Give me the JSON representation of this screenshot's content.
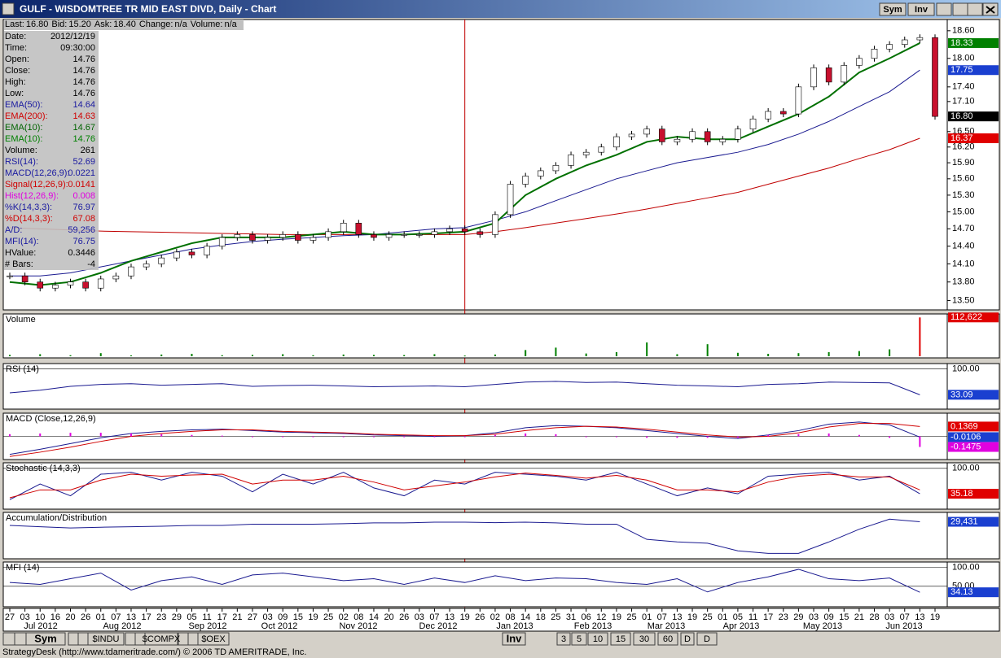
{
  "window": {
    "title": "GULF - WISDOMTREE TR MID EAST DIVD, Daily - Chart",
    "buttons": [
      "Sym",
      "Inv"
    ]
  },
  "quote_line": [
    {
      "label": "Last:",
      "value": "16.80"
    },
    {
      "label": "Bid:",
      "value": "15.20"
    },
    {
      "label": "Ask:",
      "value": "18.40"
    },
    {
      "label": "Change:",
      "value": "n/a"
    },
    {
      "label": "Volume:",
      "value": "n/a"
    }
  ],
  "info_panel": [
    {
      "label": "Date:",
      "value": "2012/12/19",
      "color": "#000000"
    },
    {
      "label": "Time:",
      "value": "09:30:00",
      "color": "#000000"
    },
    {
      "label": "Open:",
      "value": "14.76",
      "color": "#000000"
    },
    {
      "label": "Close:",
      "value": "14.76",
      "color": "#000000"
    },
    {
      "label": "High:",
      "value": "14.76",
      "color": "#000000"
    },
    {
      "label": "Low:",
      "value": "14.76",
      "color": "#000000"
    },
    {
      "label": "EMA(50):",
      "value": "14.64",
      "color": "#1a1aa0"
    },
    {
      "label": "EMA(200):",
      "value": "14.63",
      "color": "#d00000"
    },
    {
      "label": "EMA(10):",
      "value": "14.67",
      "color": "#006400"
    },
    {
      "label": "EMA(10):",
      "value": "14.76",
      "color": "#008000"
    },
    {
      "label": "Volume:",
      "value": "261",
      "color": "#000000"
    },
    {
      "label": "RSI(14):",
      "value": "52.69",
      "color": "#1a1aa0"
    },
    {
      "label": "MACD(12,26,9):",
      "value": "0.0221",
      "color": "#1a1aa0"
    },
    {
      "label": "Signal(12,26,9):",
      "value": "0.0141",
      "color": "#d00000"
    },
    {
      "label": "Hist(12,26,9):",
      "value": "0.008",
      "color": "#e000e0"
    },
    {
      "label": "%K(14,3,3):",
      "value": "76.97",
      "color": "#1a1aa0"
    },
    {
      "label": "%D(14,3,3):",
      "value": "67.08",
      "color": "#d00000"
    },
    {
      "label": "A/D:",
      "value": "59,256",
      "color": "#1a1aa0"
    },
    {
      "label": "MFI(14):",
      "value": "76.75",
      "color": "#1a1aa0"
    },
    {
      "label": "HValue:",
      "value": "0.3446",
      "color": "#000000"
    },
    {
      "label": "# Bars:",
      "value": "-4",
      "color": "#000000"
    }
  ],
  "price_panel": {
    "log_scale": true,
    "ylim": [
      13.35,
      18.85
    ],
    "yticks": [
      {
        "value": 13.5,
        "label": "13.50"
      },
      {
        "value": 13.8,
        "label": "13.80"
      },
      {
        "value": 14.1,
        "label": "14.10"
      },
      {
        "value": 14.4,
        "label": "14.40"
      },
      {
        "value": 14.7,
        "label": "14.70"
      },
      {
        "value": 15,
        "label": "15.00"
      },
      {
        "value": 15.3,
        "label": "15.30"
      },
      {
        "value": 15.6,
        "label": "15.60"
      },
      {
        "value": 15.9,
        "label": "15.90"
      },
      {
        "value": 16.2,
        "label": "16.20"
      },
      {
        "value": 16.5,
        "label": "16.50"
      },
      {
        "value": 17.1,
        "label": "17.10"
      },
      {
        "value": 17.4,
        "label": "17.40"
      },
      {
        "value": 18,
        "label": "18.00"
      },
      {
        "value": 18.6,
        "label": "18.60"
      }
    ],
    "closes": [
      13.9,
      13.8,
      13.7,
      13.75,
      13.8,
      13.7,
      13.85,
      13.9,
      14.05,
      14.1,
      14.2,
      14.3,
      14.25,
      14.4,
      14.55,
      14.6,
      14.5,
      14.55,
      14.6,
      14.5,
      14.55,
      14.65,
      14.8,
      14.6,
      14.55,
      14.6,
      14.6,
      14.6,
      14.65,
      14.7,
      14.65,
      14.6,
      14.95,
      15.5,
      15.65,
      15.75,
      15.85,
      16.05,
      16.1,
      16.2,
      16.4,
      16.45,
      16.55,
      16.3,
      16.35,
      16.5,
      16.3,
      16.35,
      16.55,
      16.75,
      16.9,
      16.85,
      17.4,
      17.8,
      17.5,
      17.85,
      18.0,
      18.2,
      18.3,
      18.4,
      18.45,
      16.8
    ],
    "up_color": "#ffffff",
    "down_color": "#c8102e",
    "lines": [
      {
        "color": "#c00000",
        "values": [
          14.72,
          14.7,
          14.68,
          14.66,
          14.65,
          14.64,
          14.63,
          14.62,
          14.61,
          14.6,
          14.6,
          14.6,
          14.6,
          14.6,
          14.6,
          14.6,
          14.65,
          14.72,
          14.8,
          14.88,
          14.96,
          15.05,
          15.15,
          15.25,
          15.35,
          15.5,
          15.65,
          15.8,
          15.98,
          16.15,
          16.37
        ]
      },
      {
        "color": "#1a1a90",
        "values": [
          13.9,
          13.9,
          13.95,
          14.05,
          14.15,
          14.25,
          14.35,
          14.42,
          14.48,
          14.52,
          14.55,
          14.58,
          14.6,
          14.65,
          14.7,
          14.72,
          14.85,
          15.0,
          15.2,
          15.4,
          15.6,
          15.75,
          15.9,
          16.0,
          16.1,
          16.25,
          16.45,
          16.7,
          17.0,
          17.3,
          17.75
        ]
      },
      {
        "color": "#007000",
        "values": [
          13.8,
          13.75,
          13.8,
          13.95,
          14.15,
          14.3,
          14.45,
          14.55,
          14.55,
          14.55,
          14.6,
          14.65,
          14.6,
          14.6,
          14.62,
          14.65,
          14.8,
          15.3,
          15.6,
          15.85,
          16.05,
          16.3,
          16.4,
          16.35,
          16.35,
          16.6,
          16.85,
          17.2,
          17.7,
          18.0,
          18.33
        ]
      }
    ],
    "markers": [
      {
        "value": 18.33,
        "color": "#008000"
      },
      {
        "value": 17.75,
        "color": "#1a3fd0"
      },
      {
        "value": 16.8,
        "label": "16.80",
        "color": "#000000"
      },
      {
        "value": 16.37,
        "color": "#e00000"
      }
    ]
  },
  "panels": [
    {
      "title": "Volume",
      "kind": "bars",
      "ylim": [
        0,
        118000
      ],
      "yticks": [],
      "series": [
        {
          "color": "#008000",
          "values": [
            4000,
            6000,
            3000,
            9000,
            2500,
            5000,
            7000,
            3000,
            4000,
            6000,
            3000,
            5000,
            4000,
            3500,
            6000,
            2000,
            5000,
            18000,
            25000,
            8000,
            12000,
            40000,
            6000,
            35000,
            10000,
            7000,
            9000,
            12000,
            15000,
            20000,
            112622
          ]
        }
      ],
      "markers": [
        {
          "value": 112622,
          "label": "112,622",
          "color": "#e00000"
        }
      ]
    },
    {
      "title": "RSI (14)",
      "kind": "lines",
      "ylim": [
        0,
        110
      ],
      "yticks": [
        {
          "value": 100,
          "label": "100.00"
        }
      ],
      "series": [
        {
          "color": "#1a1a90",
          "values": [
            38,
            45,
            55,
            60,
            62,
            58,
            60,
            62,
            55,
            57,
            58,
            56,
            54,
            55,
            56,
            54,
            60,
            66,
            68,
            65,
            66,
            62,
            58,
            56,
            54,
            60,
            62,
            66,
            65,
            64,
            33.09
          ]
        }
      ],
      "markers": [
        {
          "value": 33.09,
          "color": "#1a3fd0"
        }
      ]
    },
    {
      "title": "MACD (Close,12,26,9)",
      "kind": "macd",
      "ylim": [
        -0.3,
        0.3
      ],
      "yticks": [],
      "series": [
        {
          "color": "#1a1a90",
          "values": [
            -0.25,
            -0.18,
            -0.1,
            -0.02,
            0.04,
            0.07,
            0.09,
            0.1,
            0.08,
            0.06,
            0.05,
            0.04,
            0.02,
            0.01,
            0.0,
            0.01,
            0.05,
            0.12,
            0.15,
            0.14,
            0.12,
            0.08,
            0.04,
            0.0,
            -0.03,
            0.02,
            0.08,
            0.17,
            0.2,
            0.16,
            -0.0106
          ]
        },
        {
          "color": "#d00000",
          "values": [
            -0.28,
            -0.22,
            -0.15,
            -0.07,
            0.0,
            0.04,
            0.07,
            0.09,
            0.09,
            0.07,
            0.06,
            0.05,
            0.03,
            0.02,
            0.01,
            0.01,
            0.03,
            0.08,
            0.12,
            0.14,
            0.13,
            0.1,
            0.06,
            0.02,
            -0.01,
            0.0,
            0.05,
            0.13,
            0.18,
            0.18,
            0.1369
          ]
        },
        {
          "color": "#e000e0",
          "values": [
            0.03,
            0.04,
            0.05,
            0.05,
            0.04,
            0.03,
            0.02,
            0.01,
            -0.01,
            -0.01,
            -0.01,
            -0.01,
            -0.01,
            -0.01,
            -0.01,
            0.0,
            0.02,
            0.04,
            0.03,
            0.0,
            -0.01,
            -0.02,
            -0.02,
            -0.02,
            -0.02,
            0.02,
            0.03,
            0.04,
            0.02,
            -0.02,
            -0.1475
          ]
        }
      ],
      "markers": [
        {
          "value": 0.1369,
          "color": "#e00000"
        },
        {
          "value": -0.0106,
          "color": "#1a3fd0"
        },
        {
          "value": -0.1475,
          "color": "#e000e0"
        }
      ]
    },
    {
      "title": "Stochastic (14,3,3)",
      "kind": "lines",
      "ylim": [
        0,
        110
      ],
      "yticks": [
        {
          "value": 100,
          "label": "100.00"
        }
      ],
      "series": [
        {
          "color": "#1a1a90",
          "values": [
            20,
            60,
            30,
            85,
            90,
            70,
            90,
            80,
            40,
            85,
            60,
            90,
            50,
            30,
            70,
            60,
            90,
            85,
            80,
            70,
            90,
            60,
            30,
            50,
            35,
            80,
            85,
            90,
            70,
            80,
            35.18
          ]
        },
        {
          "color": "#d00000",
          "values": [
            25,
            45,
            45,
            70,
            85,
            80,
            83,
            85,
            60,
            70,
            70,
            80,
            65,
            45,
            55,
            65,
            78,
            88,
            82,
            75,
            82,
            70,
            45,
            45,
            40,
            65,
            80,
            85,
            78,
            78,
            45
          ]
        }
      ],
      "markers": [
        {
          "value": 35.18,
          "color": "#e00000"
        }
      ]
    },
    {
      "title": "Accumulation/Distribution",
      "kind": "lines",
      "ylim": [
        -110000,
        60000
      ],
      "yticks": [],
      "series": [
        {
          "color": "#1a1a90",
          "values": [
            15000,
            10000,
            5000,
            8000,
            10000,
            12000,
            15000,
            15000,
            20000,
            20000,
            20000,
            22000,
            25000,
            25000,
            28000,
            28000,
            26000,
            28000,
            25000,
            20000,
            20000,
            -40000,
            -50000,
            -55000,
            -85000,
            -95000,
            -95000,
            -50000,
            0,
            40000,
            29431
          ]
        }
      ],
      "markers": [
        {
          "value": 29431,
          "label": "29,431",
          "color": "#1a3fd0"
        }
      ]
    },
    {
      "title": "MFI (14)",
      "kind": "lines",
      "ylim": [
        0,
        110
      ],
      "yticks": [
        {
          "value": 100,
          "label": "100.00"
        },
        {
          "value": 50,
          "label": "50.00"
        }
      ],
      "series": [
        {
          "color": "#1a1a90",
          "values": [
            60,
            55,
            70,
            85,
            40,
            65,
            75,
            55,
            80,
            85,
            75,
            65,
            70,
            55,
            72,
            60,
            78,
            65,
            72,
            70,
            60,
            55,
            70,
            35,
            60,
            75,
            95,
            70,
            65,
            72,
            34.13
          ]
        }
      ],
      "markers": [
        {
          "value": 34.13,
          "color": "#1a3fd0"
        }
      ]
    }
  ],
  "date_axis": {
    "days": [
      "27",
      "03",
      "10",
      "16",
      "20",
      "26",
      "01",
      "07",
      "13",
      "17",
      "23",
      "29",
      "05",
      "11",
      "17",
      "21",
      "27",
      "03",
      "09",
      "15",
      "19",
      "25",
      "02",
      "08",
      "14",
      "20",
      "26",
      "03",
      "07",
      "13",
      "19",
      "26",
      "02",
      "08",
      "14",
      "18",
      "25",
      "31",
      "06",
      "12",
      "19",
      "25",
      "01",
      "07",
      "13",
      "19",
      "25",
      "01",
      "05",
      "11",
      "17",
      "23",
      "29",
      "03",
      "09",
      "15",
      "21",
      "28",
      "03",
      "07",
      "13",
      "19"
    ],
    "months": [
      "Jul 2012",
      "Aug 2012",
      "Sep 2012",
      "Oct 2012",
      "Nov 2012",
      "Dec 2012",
      "Jan 2013",
      "Feb 2013",
      "Mar 2013",
      "Apr 2013",
      "May 2013",
      "Jun 2013"
    ]
  },
  "toolbar": {
    "left": [
      "Sym",
      "$INDU",
      "$COMPX",
      "$OEX"
    ],
    "right": [
      "Inv",
      "3",
      "5",
      "10",
      "15",
      "30",
      "60",
      "D",
      "D"
    ]
  },
  "status": "StrategyDesk (http://www.tdameritrade.com/) © 2006 TD AMERITRADE, Inc."
}
